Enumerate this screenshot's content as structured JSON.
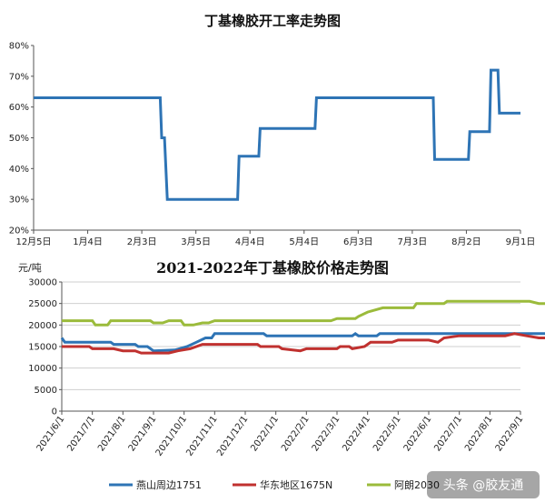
{
  "chart_data": [
    {
      "type": "line",
      "title": "丁基橡胶开工率走势图",
      "x_tick_labels": [
        "12月5日",
        "1月4日",
        "2月3日",
        "3月5日",
        "4月4日",
        "5月4日",
        "6月3日",
        "7月3日",
        "8月2日",
        "9月1日"
      ],
      "y_tick_labels": [
        "20%",
        "30%",
        "40%",
        "50%",
        "60%",
        "70%",
        "80%"
      ],
      "ylim": [
        20,
        80
      ],
      "grid": false,
      "series": [
        {
          "color": "#2E74B5",
          "points": [
            [
              0,
              63
            ],
            [
              4.5,
              63
            ],
            [
              4.55,
              50
            ],
            [
              4.65,
              50
            ],
            [
              4.75,
              30
            ],
            [
              7.25,
              30
            ],
            [
              7.3,
              44
            ],
            [
              8.0,
              44
            ],
            [
              8.05,
              53
            ],
            [
              10.0,
              53
            ],
            [
              10.05,
              63
            ],
            [
              14.2,
              63
            ],
            [
              14.25,
              43
            ],
            [
              15.45,
              43
            ],
            [
              15.5,
              52
            ],
            [
              16.2,
              52
            ],
            [
              16.25,
              72
            ],
            [
              16.5,
              72
            ],
            [
              16.55,
              58
            ],
            [
              17.3,
              58
            ]
          ]
        }
      ]
    },
    {
      "type": "line",
      "title": "2021-2022年丁基橡胶价格走势图",
      "unit_label": "元/吨",
      "x_tick_labels": [
        "2021/6/1",
        "2021/7/1",
        "2021/8/1",
        "2021/9/1",
        "2021/10/1",
        "2021/11/1",
        "2021/12/1",
        "2022/1/1",
        "2022/2/1",
        "2022/3/1",
        "2022/4/1",
        "2022/5/1",
        "2022/6/1",
        "2022/7/1",
        "2022/8/1",
        "2022/9/1"
      ],
      "y_tick_labels": [
        "0",
        "5000",
        "10000",
        "15000",
        "20000",
        "25000",
        "30000"
      ],
      "ylim": [
        0,
        30000
      ],
      "grid": true,
      "legend_position": "bottom",
      "series": [
        {
          "name": "燕山周边1751",
          "color": "#2E74B5",
          "points": [
            [
              0,
              17000
            ],
            [
              0.1,
              16000
            ],
            [
              1.0,
              16000
            ],
            [
              1.6,
              16000
            ],
            [
              1.7,
              15500
            ],
            [
              2.4,
              15500
            ],
            [
              2.5,
              15000
            ],
            [
              2.8,
              15000
            ],
            [
              3.0,
              14000
            ],
            [
              3.7,
              14200
            ],
            [
              4.1,
              15000
            ],
            [
              4.4,
              16000
            ],
            [
              4.7,
              17000
            ],
            [
              4.9,
              17000
            ],
            [
              5.0,
              18000
            ],
            [
              6.6,
              18000
            ],
            [
              6.7,
              17500
            ],
            [
              9.5,
              17500
            ],
            [
              9.6,
              18000
            ],
            [
              9.7,
              17500
            ],
            [
              10.3,
              17500
            ],
            [
              10.4,
              18000
            ],
            [
              15.8,
              18000
            ],
            [
              16.0,
              17500
            ]
          ]
        },
        {
          "name": "华东地区1675N",
          "color": "#C0312F",
          "points": [
            [
              0,
              15000
            ],
            [
              0.9,
              15000
            ],
            [
              1.0,
              14500
            ],
            [
              1.7,
              14500
            ],
            [
              2.0,
              14000
            ],
            [
              2.4,
              14000
            ],
            [
              2.6,
              13500
            ],
            [
              3.5,
              13500
            ],
            [
              3.8,
              14000
            ],
            [
              4.2,
              14500
            ],
            [
              4.6,
              15500
            ],
            [
              6.4,
              15500
            ],
            [
              6.5,
              15000
            ],
            [
              7.1,
              15000
            ],
            [
              7.2,
              14500
            ],
            [
              7.8,
              14000
            ],
            [
              8.0,
              14500
            ],
            [
              8.5,
              14500
            ],
            [
              9.0,
              14500
            ],
            [
              9.1,
              15000
            ],
            [
              9.4,
              15000
            ],
            [
              9.5,
              14500
            ],
            [
              9.9,
              15000
            ],
            [
              10.1,
              16000
            ],
            [
              10.8,
              16000
            ],
            [
              11.0,
              16500
            ],
            [
              12.0,
              16500
            ],
            [
              12.3,
              16000
            ],
            [
              12.5,
              17000
            ],
            [
              13.0,
              17500
            ],
            [
              14.5,
              17500
            ],
            [
              14.8,
              18000
            ],
            [
              15.2,
              17500
            ],
            [
              15.6,
              17000
            ],
            [
              16.0,
              17000
            ]
          ]
        },
        {
          "name": "阿朗2030",
          "color": "#9BBB3B",
          "points": [
            [
              0,
              21000
            ],
            [
              1.0,
              21000
            ],
            [
              1.1,
              20000
            ],
            [
              1.5,
              20000
            ],
            [
              1.6,
              21000
            ],
            [
              2.9,
              21000
            ],
            [
              3.0,
              20500
            ],
            [
              3.3,
              20500
            ],
            [
              3.5,
              21000
            ],
            [
              3.9,
              21000
            ],
            [
              4.0,
              20000
            ],
            [
              4.3,
              20000
            ],
            [
              4.6,
              20500
            ],
            [
              4.8,
              20500
            ],
            [
              5.0,
              21000
            ],
            [
              8.8,
              21000
            ],
            [
              9.0,
              21500
            ],
            [
              9.6,
              21500
            ],
            [
              9.7,
              22000
            ],
            [
              10.0,
              23000
            ],
            [
              10.5,
              24000
            ],
            [
              11.5,
              24000
            ],
            [
              11.6,
              25000
            ],
            [
              12.5,
              25000
            ],
            [
              12.6,
              25500
            ],
            [
              15.3,
              25500
            ],
            [
              15.6,
              25000
            ],
            [
              16.0,
              25000
            ]
          ]
        }
      ]
    }
  ],
  "watermark": "头条 @胶友通"
}
